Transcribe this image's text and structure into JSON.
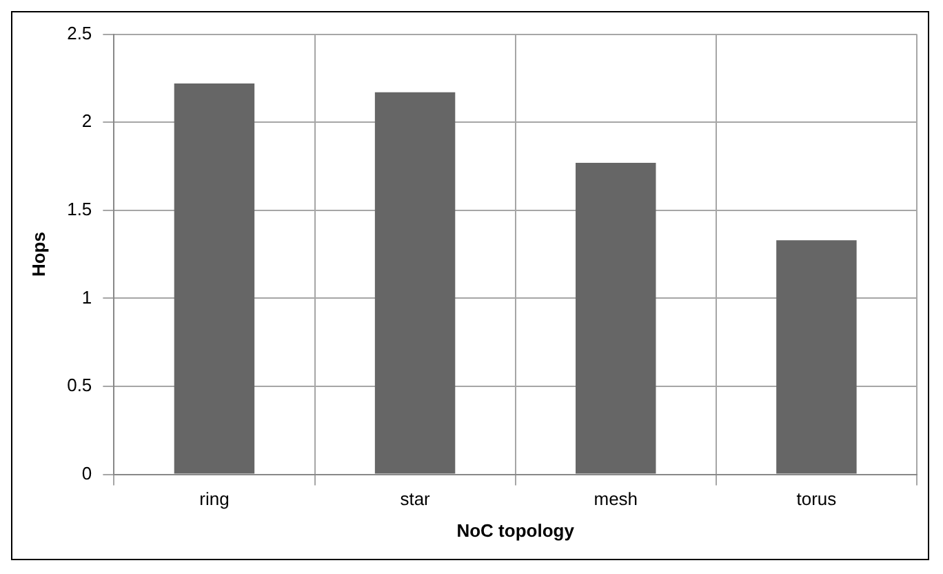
{
  "chart_data": {
    "type": "bar",
    "xlabel": "NoC topology",
    "ylabel": "Hops",
    "categories": [
      "ring",
      "star",
      "mesh",
      "torus"
    ],
    "values": [
      2.22,
      2.17,
      1.77,
      1.33
    ],
    "color": "#666666",
    "ylim": [
      0,
      2.5
    ],
    "yticks": [
      0,
      0.5,
      1,
      1.5,
      2,
      2.5
    ],
    "grid": true,
    "legend": false
  }
}
